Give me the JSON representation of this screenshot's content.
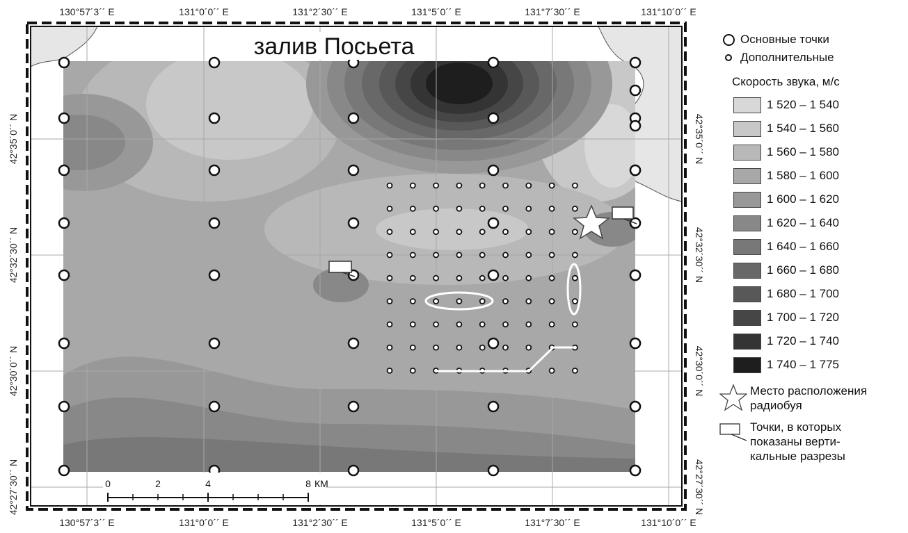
{
  "map": {
    "title": "залив Посьета",
    "lon_ticks": [
      "130°57´3´´ E",
      "131°0´0´´ E",
      "131°2´30´´ E",
      "131°5´0´´ E",
      "131°7´30´´ E",
      "131°10´0´´ E"
    ],
    "lat_ticks": [
      "42°35´0´´ N",
      "42°32´30´´ N",
      "42°30´0´´ N",
      "42°27´30´´ N"
    ],
    "scale_bar": {
      "ticks": [
        "0",
        "2",
        "4",
        "8"
      ],
      "unit": "КМ"
    },
    "colors": {
      "land": "#e6e6e6",
      "water_bg": "#ffffff"
    }
  },
  "legend": {
    "main_points_label": "Основные точки",
    "extra_points_label": "Дополнительные",
    "speed_title": "Скорость звука, м/с",
    "classes": [
      {
        "label": "1 520 – 1 540",
        "color": "#d8d8d8"
      },
      {
        "label": "1 540 – 1 560",
        "color": "#c8c8c8"
      },
      {
        "label": "1 560 – 1 580",
        "color": "#b8b8b8"
      },
      {
        "label": "1 580 – 1 600",
        "color": "#a8a8a8"
      },
      {
        "label": "1 600 – 1 620",
        "color": "#989898"
      },
      {
        "label": "1 620 – 1 640",
        "color": "#888888"
      },
      {
        "label": "1 640 – 1 660",
        "color": "#787878"
      },
      {
        "label": "1 660 – 1 680",
        "color": "#686868"
      },
      {
        "label": "1 680 – 1 700",
        "color": "#585858"
      },
      {
        "label": "1 700 – 1 720",
        "color": "#464646"
      },
      {
        "label": "1 720 – 1 740",
        "color": "#343434"
      },
      {
        "label": "1 740 – 1 775",
        "color": "#1e1e1e"
      }
    ],
    "buoy_label": [
      "Место расположения",
      "радиобуя"
    ],
    "section_label": [
      "Точки, в которых",
      "показаны верти-",
      "кальные разрезы"
    ]
  }
}
